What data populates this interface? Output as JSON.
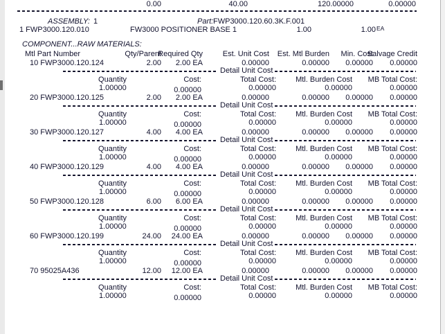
{
  "report": {
    "top_totals": [
      "0.00",
      "40.00",
      "120.00000",
      "0.00000"
    ],
    "assembly_header": {
      "assembly_label": "ASSEMBLY:",
      "assembly_value": "1",
      "part_label": "Part:",
      "part_number": "FWP3000.120.60.3K.F.001"
    },
    "assembly_row": {
      "item": "1  FWP3000.120.010",
      "description": "FW3000 POSITIONER BASE 1",
      "quantity": "1.00",
      "total_qty": "1.00",
      "uom": "EA"
    },
    "section_title": "COMPONENT...RAW MATERIALS:",
    "columns": {
      "mtl": "Mtl Part Number",
      "qty_parent": "Qty/Parent",
      "required_qty": "Required Qty",
      "est_unit_cost": "Est. Unit Cost",
      "est_mtl_burden": "Est. Mtl Burden",
      "min_cost": "Min. Cost",
      "salvage_credit": "Salvage Credit"
    },
    "detail_unit_cost_label": "Detail Unit Cost",
    "detail_columns": {
      "quantity": "Quantity",
      "cost": "Cost:",
      "total_cost": "Total Cost:",
      "mtl_burden_cost": "Mtl. Burden Cost",
      "mb_total_cost": "MB Total Cost:"
    }
  },
  "components": [
    {
      "mtl": "10 FWP3000.120.124",
      "qty_parent": "2.00",
      "required_qty": "2.00 EA",
      "est_unit_cost": "0.00000",
      "est_mtl_burden": "0.00000",
      "min_cost": "0.00000",
      "salvage_credit": "0.00000",
      "quantity": "1.00000",
      "cost": "0.00000",
      "total_cost": "0.00000",
      "mtl_burden_cost": "0.00000",
      "mb_total_cost": "0.00000"
    },
    {
      "mtl": "20 FWP3000.120.125",
      "qty_parent": "2.00",
      "required_qty": "2.00 EA",
      "est_unit_cost": "0.00000",
      "est_mtl_burden": "0.00000",
      "min_cost": "0.00000",
      "salvage_credit": "0.00000",
      "quantity": "1.00000",
      "cost": "0.00000",
      "total_cost": "0.00000",
      "mtl_burden_cost": "0.00000",
      "mb_total_cost": "0.00000"
    },
    {
      "mtl": "30 FWP3000.120.127",
      "qty_parent": "4.00",
      "required_qty": "4.00 EA",
      "est_unit_cost": "0.00000",
      "est_mtl_burden": "0.00000",
      "min_cost": "0.00000",
      "salvage_credit": "0.00000",
      "quantity": "1.00000",
      "cost": "0.00000",
      "total_cost": "0.00000",
      "mtl_burden_cost": "0.00000",
      "mb_total_cost": "0.00000"
    },
    {
      "mtl": "40 FWP3000.120.129",
      "qty_parent": "4.00",
      "required_qty": "4.00 EA",
      "est_unit_cost": "0.00000",
      "est_mtl_burden": "0.00000",
      "min_cost": "0.00000",
      "salvage_credit": "0.00000",
      "quantity": "1.00000",
      "cost": "0.00000",
      "total_cost": "0.00000",
      "mtl_burden_cost": "0.00000",
      "mb_total_cost": "0.00000"
    },
    {
      "mtl": "50 FWP3000.120.128",
      "qty_parent": "6.00",
      "required_qty": "6.00 EA",
      "est_unit_cost": "0.00000",
      "est_mtl_burden": "0.00000",
      "min_cost": "0.00000",
      "salvage_credit": "0.00000",
      "quantity": "1.00000",
      "cost": "0.00000",
      "total_cost": "0.00000",
      "mtl_burden_cost": "0.00000",
      "mb_total_cost": "0.00000"
    },
    {
      "mtl": "60 FWP3000.120.199",
      "qty_parent": "24.00",
      "required_qty": "24.00 EA",
      "est_unit_cost": "0.00000",
      "est_mtl_burden": "0.00000",
      "min_cost": "0.00000",
      "salvage_credit": "0.00000",
      "quantity": "1.00000",
      "cost": "0.00000",
      "total_cost": "0.00000",
      "mtl_burden_cost": "0.00000",
      "mb_total_cost": "0.00000"
    },
    {
      "mtl": "70 95025A436",
      "qty_parent": "12.00",
      "required_qty": "12.00 EA",
      "est_unit_cost": "0.00000",
      "est_mtl_burden": "0.00000",
      "min_cost": "0.00000",
      "salvage_credit": "0.00000",
      "quantity": "1.00000",
      "cost": "0.00000",
      "total_cost": "0.00000",
      "mtl_burden_cost": "0.00000",
      "mb_total_cost": "0.00000"
    }
  ],
  "colors": {
    "text": "#12122e",
    "page_background": "#ffffff",
    "edge_strip": "#eaeaea",
    "edge_line": "#b5b5b5",
    "scroll_thumb": "#6f6f6f"
  }
}
